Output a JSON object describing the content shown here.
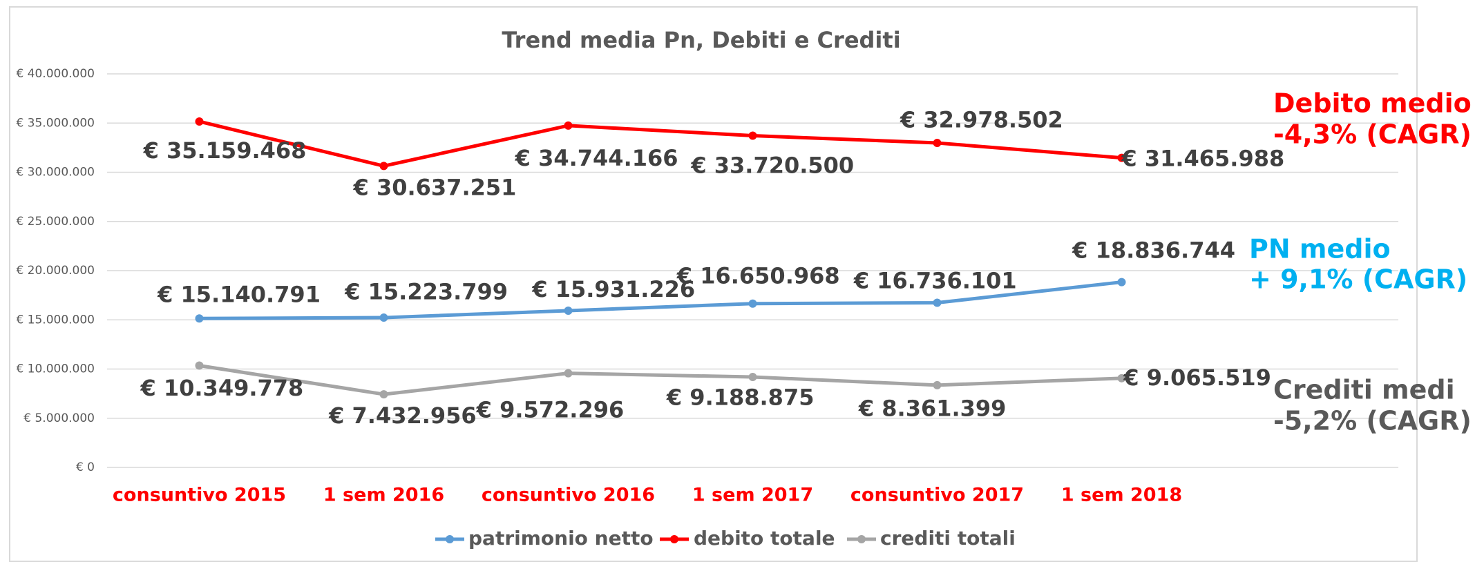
{
  "chart_data": {
    "type": "line",
    "title": "Trend media Pn, Debiti e Crediti",
    "categories": [
      "consuntivo 2015",
      "1 sem 2016",
      "consuntivo 2016",
      "1 sem 2017",
      "consuntivo 2017",
      "1 sem 2018"
    ],
    "series": [
      {
        "name": "patrimonio netto",
        "color": "#5b9bd5",
        "values": [
          15140791,
          15223799,
          15931226,
          16650968,
          16736101,
          18836744
        ],
        "value_labels": [
          "€ 15.140.791",
          "€ 15.223.799",
          "€ 15.931.226",
          "€ 16.650.968",
          "€ 16.736.101",
          "€ 18.836.744"
        ]
      },
      {
        "name": "debito totale",
        "color": "#ff0000",
        "values": [
          35159468,
          30637251,
          34744166,
          33720500,
          32978502,
          31465988
        ],
        "value_labels": [
          "€ 35.159.468",
          "€ 30.637.251",
          "€ 34.744.166",
          "€ 33.720.500",
          "€ 32.978.502",
          "€ 31.465.988"
        ]
      },
      {
        "name": "crediti totali",
        "color": "#a5a5a5",
        "values": [
          10349778,
          7432956,
          9572296,
          9188875,
          8361399,
          9065519
        ],
        "value_labels": [
          "€ 10.349.778",
          "€ 7.432.956",
          "€ 9.572.296",
          "€ 9.188.875",
          "€ 8.361.399",
          "€ 9.065.519"
        ]
      }
    ],
    "ylim": [
      0,
      40000000
    ],
    "yticks": [
      {
        "value": 0,
        "label": "€ 0"
      },
      {
        "value": 5000000,
        "label": "€ 5.000.000"
      },
      {
        "value": 10000000,
        "label": "€ 10.000.000"
      },
      {
        "value": 15000000,
        "label": "€ 15.000.000"
      },
      {
        "value": 20000000,
        "label": "€ 20.000.000"
      },
      {
        "value": 25000000,
        "label": "€ 25.000.000"
      },
      {
        "value": 30000000,
        "label": "€ 30.000.000"
      },
      {
        "value": 35000000,
        "label": "€ 35.000.000"
      },
      {
        "value": 40000000,
        "label": "€ 40.000.000"
      }
    ],
    "grid": true,
    "category_color": "#ff0000",
    "annotations": [
      {
        "text": "Debito medio",
        "color": "#ff0000"
      },
      {
        "text": "-4,3% (CAGR)",
        "color": "#ff0000"
      },
      {
        "text": "PN medio",
        "color": "#00b0f0"
      },
      {
        "text": "+ 9,1% (CAGR)",
        "color": "#00b0f0"
      },
      {
        "text": "Crediti medi",
        "color": "#595959"
      },
      {
        "text": "-5,2% (CAGR)",
        "color": "#595959"
      }
    ]
  }
}
